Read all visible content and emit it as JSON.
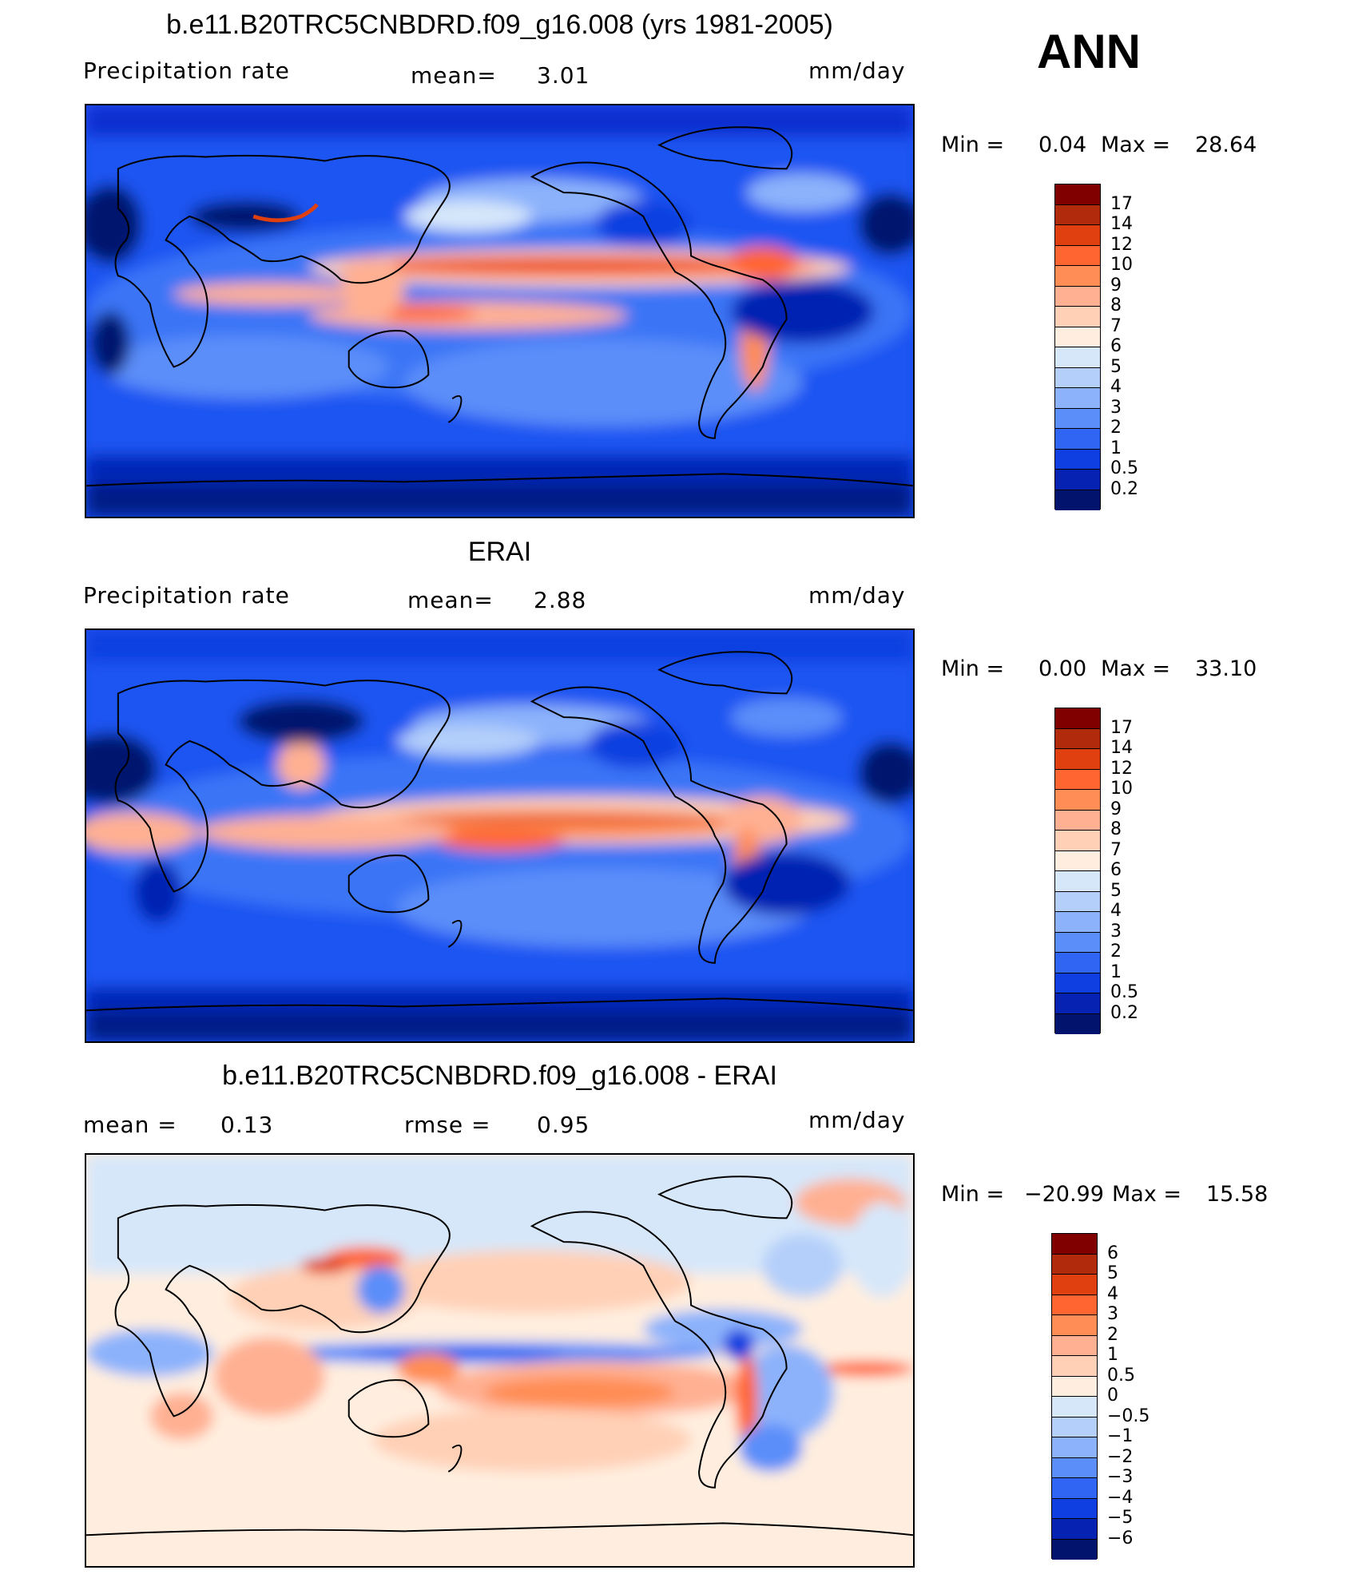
{
  "season": "ANN",
  "chart_data": [
    {
      "type": "heatmap",
      "title": "b.e11.B20TRC5CNBDRD.f09_g16.008 (yrs 1981-2005)",
      "left_label": "Precipitation  rate",
      "mean_label": "mean=",
      "mean_value": "3.01",
      "units": "mm/day",
      "min_label": "Min  =",
      "min_value": "0.04",
      "max_label": "Max  =",
      "max_value": "28.64",
      "colorbar_levels": [
        "17",
        "14",
        "12",
        "10",
        "9",
        "8",
        "7",
        "6",
        "5",
        "4",
        "3",
        "2",
        "1",
        "0.5",
        "0.2"
      ],
      "colorbar_colors": [
        "#800000",
        "#b22a0c",
        "#e0400f",
        "#ff6530",
        "#ff8d55",
        "#ffb093",
        "#ffd0b6",
        "#ffeedf",
        "#d6e7fa",
        "#b4cffa",
        "#8cb2fb",
        "#5b8ef9",
        "#2f65f2",
        "#0f3fe0",
        "#0522b2",
        "#02136e"
      ]
    },
    {
      "type": "heatmap",
      "title": "ERAI",
      "left_label": "Precipitation  rate",
      "mean_label": "mean=",
      "mean_value": "2.88",
      "units": "mm/day",
      "min_label": "Min  =",
      "min_value": "0.00",
      "max_label": "Max  =",
      "max_value": "33.10",
      "colorbar_levels": [
        "17",
        "14",
        "12",
        "10",
        "9",
        "8",
        "7",
        "6",
        "5",
        "4",
        "3",
        "2",
        "1",
        "0.5",
        "0.2"
      ],
      "colorbar_colors": [
        "#800000",
        "#b22a0c",
        "#e0400f",
        "#ff6530",
        "#ff8d55",
        "#ffb093",
        "#ffd0b6",
        "#ffeedf",
        "#d6e7fa",
        "#b4cffa",
        "#8cb2fb",
        "#5b8ef9",
        "#2f65f2",
        "#0f3fe0",
        "#0522b2",
        "#02136e"
      ]
    },
    {
      "type": "heatmap",
      "title": "b.e11.B20TRC5CNBDRD.f09_g16.008 - ERAI",
      "left_label": "mean  =",
      "left_value": "0.13",
      "mean_label": "rmse  =",
      "mean_value": "0.95",
      "units": "mm/day",
      "min_label": "Min  =",
      "min_value": "−20.99",
      "max_label": "Max  =",
      "max_value": "15.58",
      "colorbar_levels": [
        "6",
        "5",
        "4",
        "3",
        "2",
        "1",
        "0.5",
        "0",
        "−0.5",
        "−1",
        "−2",
        "−3",
        "−4",
        "−5",
        "−6"
      ],
      "colorbar_colors": [
        "#800000",
        "#b22a0c",
        "#e0400f",
        "#ff6530",
        "#ff8d55",
        "#ffb093",
        "#ffd0b6",
        "#ffeedf",
        "#d6e7fa",
        "#b4cffa",
        "#8cb2fb",
        "#5b8ef9",
        "#2f65f2",
        "#0f3fe0",
        "#0522b2",
        "#02136e"
      ]
    }
  ]
}
